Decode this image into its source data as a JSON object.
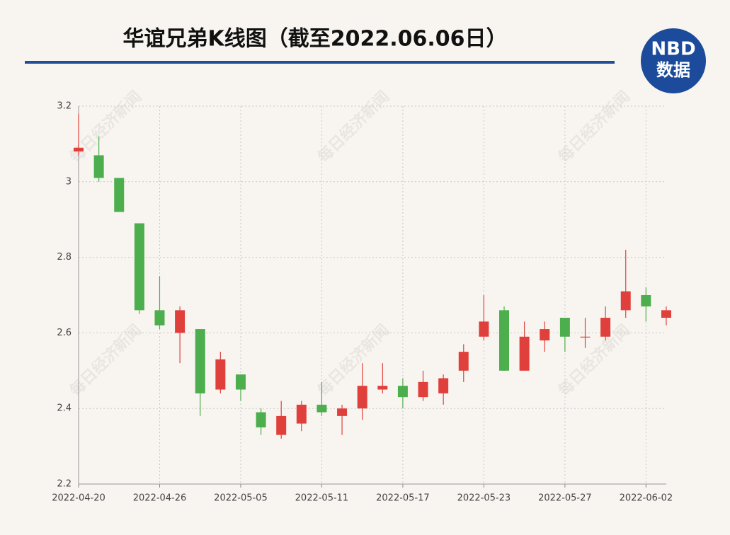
{
  "chart_data": {
    "type": "candlestick",
    "title": "华谊兄弟K线图（截至2022.06.06日）",
    "logo": {
      "top": "NBD",
      "bottom": "数据"
    },
    "watermark": "每日经济新闻",
    "categories": [
      "2022-04-20",
      null,
      null,
      null,
      "2022-04-26",
      null,
      null,
      null,
      "2022-05-05",
      null,
      null,
      null,
      "2022-05-11",
      null,
      null,
      null,
      "2022-05-17",
      null,
      null,
      null,
      "2022-05-23",
      null,
      null,
      null,
      "2022-05-27",
      null,
      null,
      null,
      "2022-06-02",
      null
    ],
    "open": [
      3.08,
      3.07,
      3.01,
      2.89,
      2.66,
      2.6,
      2.61,
      2.45,
      2.49,
      2.39,
      2.33,
      2.36,
      2.41,
      2.38,
      2.4,
      2.45,
      2.46,
      2.43,
      2.44,
      2.5,
      2.59,
      2.66,
      2.5,
      2.58,
      2.64,
      2.59,
      2.59,
      2.66,
      2.7,
      2.64
    ],
    "high": [
      3.18,
      3.12,
      3.01,
      2.89,
      2.75,
      2.67,
      2.61,
      2.55,
      2.49,
      2.4,
      2.42,
      2.42,
      2.47,
      2.41,
      2.52,
      2.52,
      2.48,
      2.5,
      2.49,
      2.57,
      2.7,
      2.67,
      2.63,
      2.63,
      2.64,
      2.64,
      2.67,
      2.82,
      2.72,
      2.67
    ],
    "low": [
      3.07,
      3.0,
      2.92,
      2.65,
      2.61,
      2.52,
      2.38,
      2.44,
      2.42,
      2.33,
      2.32,
      2.34,
      2.38,
      2.33,
      2.37,
      2.44,
      2.4,
      2.42,
      2.41,
      2.47,
      2.58,
      2.5,
      2.5,
      2.55,
      2.55,
      2.56,
      2.58,
      2.64,
      2.63,
      2.62
    ],
    "close": [
      3.09,
      3.01,
      2.92,
      2.66,
      2.62,
      2.66,
      2.44,
      2.53,
      2.45,
      2.35,
      2.38,
      2.41,
      2.39,
      2.4,
      2.46,
      2.46,
      2.43,
      2.47,
      2.48,
      2.55,
      2.63,
      2.5,
      2.59,
      2.61,
      2.59,
      2.59,
      2.64,
      2.71,
      2.67,
      2.66
    ],
    "up_color": "#e0403c",
    "down_color": "#4cae4c",
    "ylim": [
      2.2,
      3.2
    ],
    "yticks": [
      2.2,
      2.4,
      2.6,
      2.8,
      3,
      3.2
    ],
    "grid": true
  }
}
